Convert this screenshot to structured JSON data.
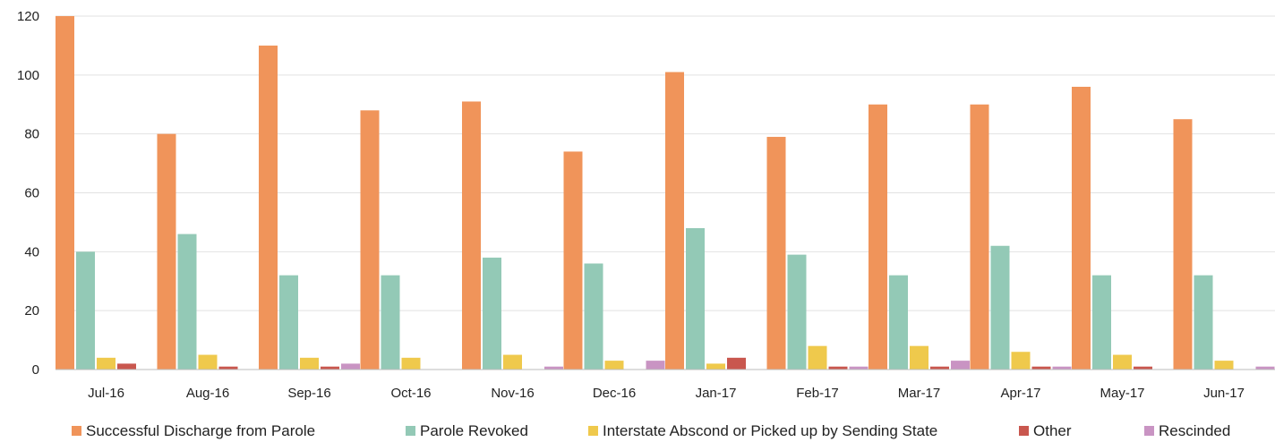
{
  "chart_data": {
    "type": "bar",
    "categories": [
      "Jul-16",
      "Aug-16",
      "Sep-16",
      "Oct-16",
      "Nov-16",
      "Dec-16",
      "Jan-17",
      "Feb-17",
      "Mar-17",
      "Apr-17",
      "May-17",
      "Jun-17"
    ],
    "series": [
      {
        "name": "Successful Discharge from Parole",
        "color": "#F0945A",
        "values": [
          120,
          80,
          110,
          88,
          91,
          74,
          101,
          79,
          90,
          90,
          96,
          85
        ]
      },
      {
        "name": "Parole Revoked",
        "color": "#93C9B6",
        "values": [
          40,
          46,
          32,
          32,
          38,
          36,
          48,
          39,
          32,
          42,
          32,
          32
        ]
      },
      {
        "name": "Interstate Abscond or Picked up by Sending State",
        "color": "#EFC94C",
        "values": [
          4,
          5,
          4,
          4,
          5,
          3,
          2,
          8,
          8,
          6,
          5,
          3
        ]
      },
      {
        "name": "Other",
        "color": "#C9574E",
        "values": [
          2,
          1,
          1,
          0,
          0,
          0,
          4,
          1,
          1,
          1,
          1,
          0
        ]
      },
      {
        "name": "Rescinded",
        "color": "#C994C3",
        "values": [
          0,
          0,
          2,
          0,
          1,
          3,
          0,
          1,
          3,
          1,
          0,
          1
        ]
      }
    ],
    "yticks": [
      "0",
      "20",
      "40",
      "60",
      "80",
      "100",
      "120"
    ],
    "ylim": [
      0,
      120
    ],
    "grid": true,
    "legend": "bottom"
  }
}
